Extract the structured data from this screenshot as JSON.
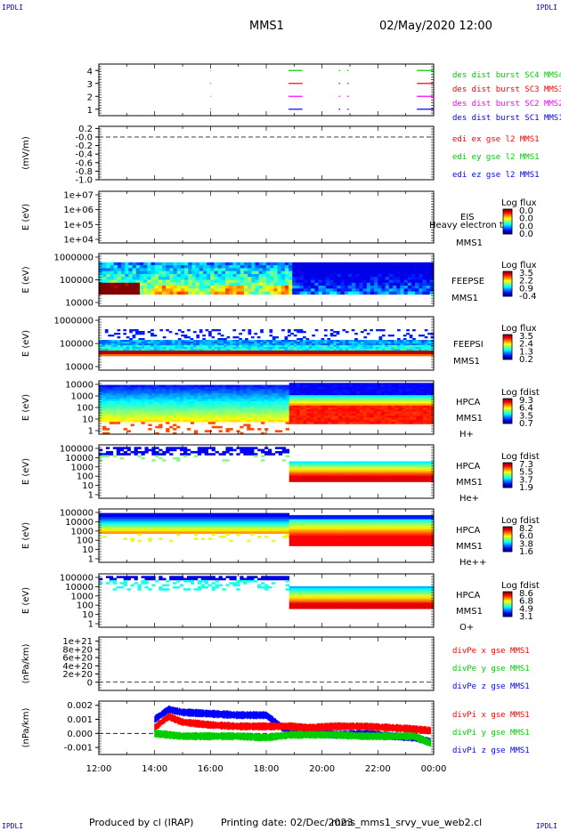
{
  "corners": {
    "top_left": "IPDLI",
    "top_right": "IPDLI",
    "bottom_left": "IPDLI",
    "bottom_right": "IPDLI"
  },
  "header": {
    "spacecraft": "MMS1",
    "datetime": "02/May/2020 12:00"
  },
  "footer": {
    "produced_by": "Produced by cl (IRAP)",
    "printing_date": "Printing date: 02/Dec/2023",
    "script": "mms_mms1_srvy_vue_web2.cl"
  },
  "x_ticks": [
    "12:00",
    "14:00",
    "16:00",
    "18:00",
    "20:00",
    "22:00",
    "00:00"
  ],
  "colors": {
    "blue": "#0000ff",
    "red": "#ff0000",
    "magenta": "#ff00ff",
    "green": "#00cc00"
  },
  "chart_data": [
    {
      "type": "line",
      "ylabel": "",
      "ylim": [
        0.5,
        4.5
      ],
      "yticks": [
        "1",
        "2",
        "3",
        "4"
      ],
      "legend_placement": "right",
      "series": [
        {
          "name": "des dist burst SC1 MMS1",
          "color": "blue",
          "y": 1,
          "intervals_hours": [
            [
              4.0,
              4.02
            ],
            [
              6.8,
              7.3
            ],
            [
              8.6,
              8.65
            ],
            [
              8.9,
              8.95
            ],
            [
              11.4,
              12.0
            ]
          ]
        },
        {
          "name": "des dist burst SC2 MMS2",
          "color": "magenta",
          "y": 2,
          "intervals_hours": [
            [
              4.0,
              4.02
            ],
            [
              6.8,
              7.3
            ],
            [
              8.6,
              8.65
            ],
            [
              8.9,
              8.95
            ],
            [
              11.4,
              12.0
            ]
          ]
        },
        {
          "name": "des dist burst SC3 MMS3",
          "color": "red",
          "y": 3,
          "intervals_hours": [
            [
              4.0,
              4.02
            ],
            [
              6.8,
              7.3
            ],
            [
              8.6,
              8.65
            ],
            [
              8.9,
              8.95
            ],
            [
              11.4,
              12.0
            ]
          ]
        },
        {
          "name": "des dist burst SC4 MMS4",
          "color": "green",
          "y": 4,
          "intervals_hours": [
            [
              4.0,
              4.02
            ],
            [
              6.8,
              7.3
            ],
            [
              8.6,
              8.65
            ],
            [
              8.9,
              8.95
            ],
            [
              11.4,
              12.0
            ]
          ]
        }
      ]
    },
    {
      "type": "line",
      "ylabel": "(mV/m)",
      "ylim": [
        -1.0,
        0.25
      ],
      "yticks": [
        "0.2",
        "-0.0",
        "-0.2",
        "-0.4",
        "-0.6",
        "-0.8",
        "-1.0"
      ],
      "zero_line": 0,
      "legend_placement": "right",
      "series": [
        {
          "name": "edi ex gse l2 MMS1",
          "color": "red",
          "values": []
        },
        {
          "name": "edi ey gse l2 MMS1",
          "color": "green",
          "values": []
        },
        {
          "name": "edi ez gse l2 MMS1",
          "color": "blue",
          "values": []
        }
      ]
    },
    {
      "type": "heatmap",
      "ylabel": "E (eV)",
      "yscale": "log",
      "yticks": [
        "1e+07",
        "1e+06",
        "1e+05",
        "1e+04"
      ],
      "right_labels": [
        "EIS",
        "MMS1"
      ],
      "overlay_text": "Heavy electron to",
      "colorbar": {
        "title": "Log flux",
        "ticks": [
          "0.0",
          "0.0",
          "0.0",
          "0.0"
        ]
      },
      "values": []
    },
    {
      "type": "heatmap",
      "ylabel": "E (eV)",
      "yscale": "log",
      "yticks": [
        "1000000",
        "100000",
        "10000"
      ],
      "right_labels": [
        "FEEPSE",
        "MMS1"
      ],
      "colorbar": {
        "title": "Log flux",
        "ticks": [
          "3.5",
          "2.2",
          "0.9",
          "-0.4"
        ]
      },
      "data_start_hour": 0.0,
      "data_end_hour": 12.0
    },
    {
      "type": "heatmap",
      "ylabel": "E (eV)",
      "yscale": "log",
      "yticks": [
        "1000000",
        "100000",
        "10000"
      ],
      "right_labels": [
        "FEEPSI",
        "MMS1"
      ],
      "colorbar": {
        "title": "Log flux",
        "ticks": [
          "3.5",
          "2.4",
          "1.3",
          "0.2"
        ]
      }
    },
    {
      "type": "heatmap",
      "ylabel": "E (eV)",
      "yscale": "log",
      "yticks": [
        "10000",
        "1000",
        "100",
        "10",
        "1"
      ],
      "right_labels": [
        "HPCA",
        "MMS1",
        "H+"
      ],
      "colorbar": {
        "title": "Log fdist",
        "ticks": [
          "9.3",
          "6.4",
          "3.5",
          "0.7"
        ]
      },
      "transition_hour": 6.85
    },
    {
      "type": "heatmap",
      "ylabel": "E (eV)",
      "yscale": "log",
      "yticks": [
        "100000",
        "10000",
        "1000",
        "100",
        "10",
        "1"
      ],
      "right_labels": [
        "HPCA",
        "MMS1",
        "He+"
      ],
      "colorbar": {
        "title": "Log fdist",
        "ticks": [
          "7.3",
          "5.5",
          "3.7",
          "1.9"
        ]
      },
      "transition_hour": 6.85
    },
    {
      "type": "heatmap",
      "ylabel": "E (eV)",
      "yscale": "log",
      "yticks": [
        "100000",
        "10000",
        "1000",
        "100",
        "10",
        "1"
      ],
      "right_labels": [
        "HPCA",
        "MMS1",
        "He++"
      ],
      "colorbar": {
        "title": "Log fdist",
        "ticks": [
          "8.2",
          "6.0",
          "3.8",
          "1.6"
        ]
      },
      "transition_hour": 6.85
    },
    {
      "type": "heatmap",
      "ylabel": "E (eV)",
      "yscale": "log",
      "yticks": [
        "100000",
        "10000",
        "1000",
        "100",
        "10",
        "1"
      ],
      "right_labels": [
        "HPCA",
        "MMS1",
        "O+"
      ],
      "colorbar": {
        "title": "Log fdist",
        "ticks": [
          "8.6",
          "6.8",
          "4.9",
          "3.1"
        ]
      },
      "transition_hour": 6.85
    },
    {
      "type": "line",
      "ylabel": "(nPa/km)",
      "ylim": [
        -2e+20,
        1.1e+21
      ],
      "yticks": [
        "1e+21",
        "8e+20",
        "6e+20",
        "4e+20",
        "2e+20",
        "0"
      ],
      "zero_line": 0,
      "legend_placement": "right",
      "series": [
        {
          "name": "divPe x gse MMS1",
          "color": "red",
          "values": []
        },
        {
          "name": "divPe y gse MMS1",
          "color": "green",
          "values": []
        },
        {
          "name": "divPe z gse MMS1",
          "color": "blue",
          "values": []
        }
      ]
    },
    {
      "type": "line",
      "ylabel": "(nPa/km)",
      "ylim": [
        -0.0015,
        0.0023
      ],
      "yticks": [
        "0.002",
        "0.001",
        "0.000",
        "-0.001"
      ],
      "zero_line": 0,
      "legend_placement": "right",
      "series": [
        {
          "name": "divPi x gse MMS1",
          "color": "red",
          "x_hours": [
            2.0,
            2.5,
            3.0,
            4.0,
            5.0,
            6.0,
            6.85,
            7.5,
            8.5,
            9.5,
            10.5,
            11.3,
            11.9
          ],
          "values": [
            0.0004,
            0.0012,
            0.0008,
            0.0006,
            0.0005,
            0.0005,
            0.0005,
            0.0004,
            0.0005,
            0.0005,
            0.0004,
            0.0003,
            0.0002
          ]
        },
        {
          "name": "divPi y gse MMS1",
          "color": "green",
          "x_hours": [
            2.0,
            2.5,
            3.0,
            4.0,
            5.0,
            6.0,
            6.85,
            7.5,
            8.5,
            9.5,
            10.5,
            11.3,
            11.9
          ],
          "values": [
            0.0,
            -0.0001,
            -0.0002,
            -0.0002,
            -0.0002,
            -0.0003,
            -0.0001,
            -0.0001,
            -0.0001,
            -0.0002,
            -0.0002,
            -0.0002,
            -0.0007
          ]
        },
        {
          "name": "divPi z gse MMS1",
          "color": "blue",
          "x_hours": [
            2.0,
            2.5,
            3.0,
            4.0,
            5.0,
            6.0,
            6.85,
            7.5,
            8.5,
            9.5,
            10.5,
            11.3,
            11.9
          ],
          "values": [
            0.001,
            0.0017,
            0.0015,
            0.0014,
            0.0013,
            0.0013,
            0.0,
            0.0001,
            -0.0001,
            0.0,
            -0.0002,
            -0.0003,
            -0.0006
          ]
        }
      ]
    }
  ]
}
